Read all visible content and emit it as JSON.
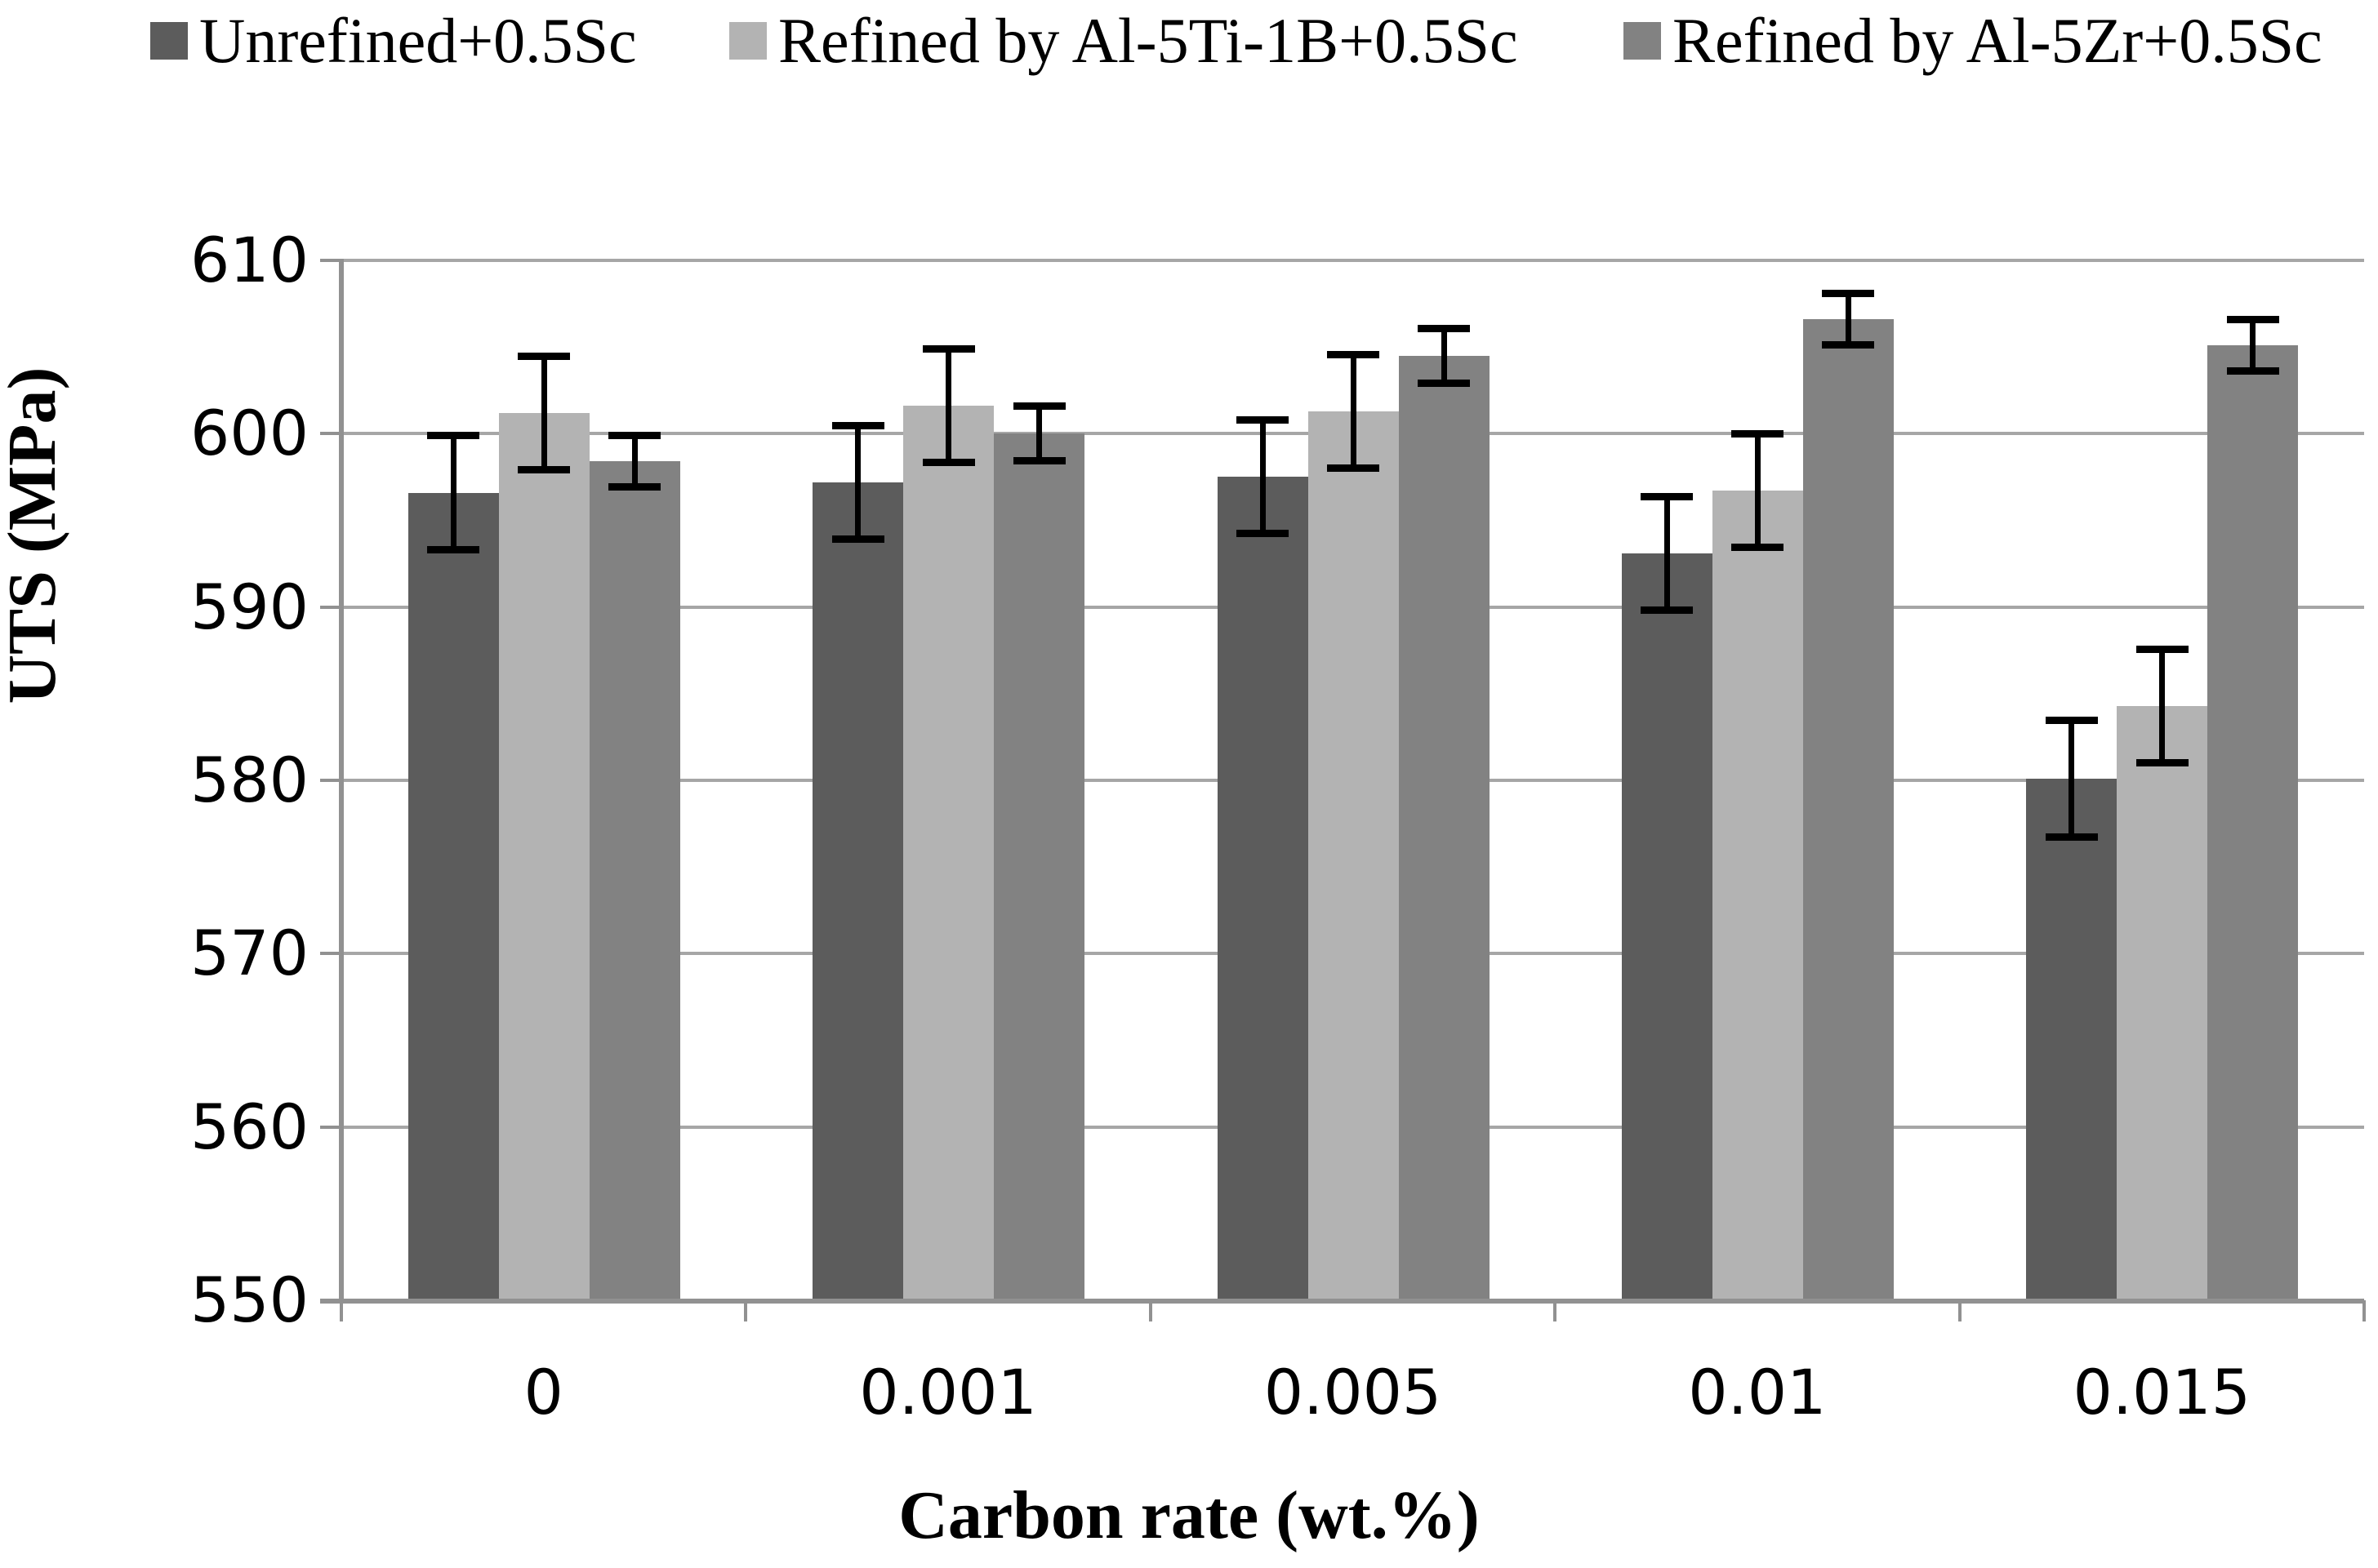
{
  "chart_data": {
    "type": "bar",
    "title": "",
    "xlabel": "Carbon rate (wt.%)",
    "ylabel": "UTS (MPa)",
    "categories": [
      "0",
      "0.001",
      "0.005",
      "0.01",
      "0.015"
    ],
    "series": [
      {
        "name": "Unrefined+0.5Sc",
        "color": "#5c5c5c",
        "values": [
          596.6,
          597.2,
          597.5,
          593.1,
          580.1
        ],
        "errors": [
          3.3,
          3.3,
          3.3,
          3.3,
          3.4
        ]
      },
      {
        "name": "Refined by Al-5Ti-1B+0.5Sc",
        "color": "#b3b3b3",
        "values": [
          601.2,
          601.6,
          601.3,
          596.7,
          584.3
        ],
        "errors": [
          3.3,
          3.3,
          3.3,
          3.3,
          3.3
        ]
      },
      {
        "name": "Refined by Al-5Zr+0.5Sc",
        "color": "#828282",
        "values": [
          598.4,
          600.0,
          604.5,
          606.6,
          605.1
        ],
        "errors": [
          1.5,
          1.6,
          1.6,
          1.5,
          1.5
        ]
      }
    ],
    "ylim": [
      550,
      610
    ],
    "yticks": [
      550,
      560,
      570,
      580,
      590,
      600,
      610
    ],
    "ytick_step": 10,
    "grid": true,
    "legend_position": "top",
    "error_bars": true
  },
  "colors": {
    "gridline": "#a6a6a6",
    "axis": "#919191",
    "error_bar": "#000000",
    "text": "#000000",
    "background": "#ffffff"
  }
}
